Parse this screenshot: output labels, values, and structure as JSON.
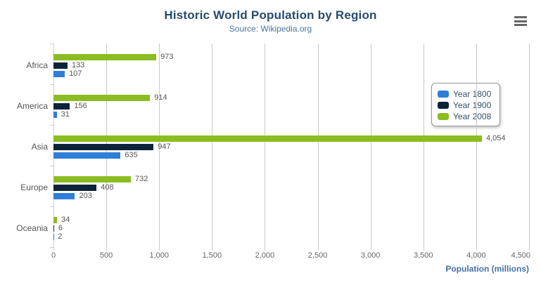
{
  "header": {
    "title": "Historic World Population by Region",
    "subtitle": "Source: Wikipedia.org",
    "menu_icon": "hamburger-context-menu-icon"
  },
  "chart_data": {
    "type": "bar",
    "orientation": "horizontal",
    "title": "Historic World Population by Region",
    "subtitle": "Source: Wikipedia.org",
    "categories": [
      "Africa",
      "America",
      "Asia",
      "Europe",
      "Oceania"
    ],
    "series": [
      {
        "name": "Year 1800",
        "color": "#2f7ed8",
        "values": [
          107,
          31,
          635,
          203,
          2
        ]
      },
      {
        "name": "Year 1900",
        "color": "#0d233a",
        "values": [
          133,
          156,
          947,
          408,
          6
        ]
      },
      {
        "name": "Year 2008",
        "color": "#8bbc21",
        "values": [
          973,
          914,
          4054,
          732,
          34
        ]
      }
    ],
    "bar_order_top_to_bottom": [
      "Year 2008",
      "Year 1900",
      "Year 1800"
    ],
    "data_labels": true,
    "xlabel": "Population (millions)",
    "xlim": [
      0,
      4500
    ],
    "x_ticks": [
      0,
      500,
      1000,
      1500,
      2000,
      2500,
      3000,
      3500,
      4000,
      4500
    ],
    "grid": true,
    "legend_position": "right-middle"
  },
  "colors": {
    "grid": "#c9c9c9",
    "axis_tick": "#c0d0e0",
    "title_text": "#274b6d",
    "subtitle_text": "#4d759e",
    "axis_title_text": "#4572a7",
    "label_text": "#565656"
  }
}
